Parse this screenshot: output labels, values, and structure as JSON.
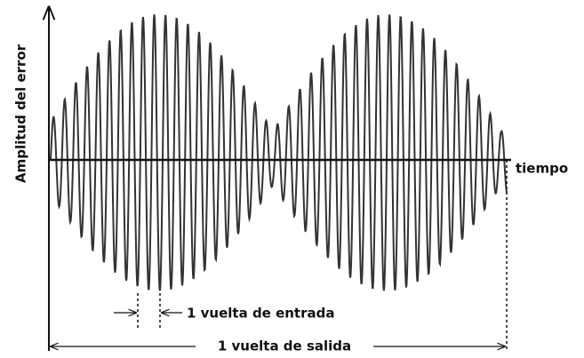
{
  "labels": {
    "y_axis": "Amplitud del error",
    "x_axis": "tiempo",
    "input_turn": "1 vuelta de entrada",
    "output_turn": "1 vuelta de salida"
  }
}
